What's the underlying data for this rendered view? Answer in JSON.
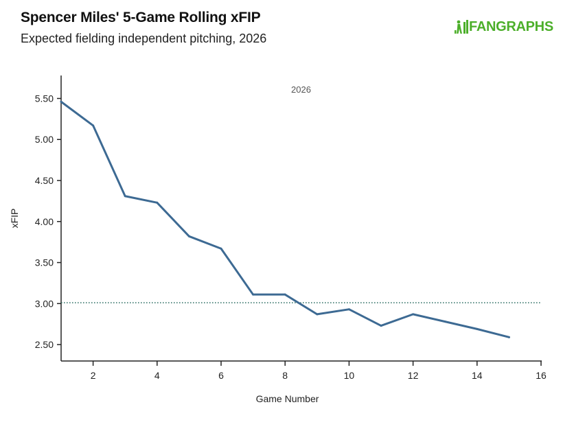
{
  "header": {
    "title": "Spencer Miles' 5-Game Rolling xFIP",
    "subtitle": "Expected fielding independent pitching, 2026",
    "logo_text": "FANGRAPHS",
    "logo_color": "#4caf2a"
  },
  "chart_data": {
    "type": "line",
    "xlabel": "Game Number",
    "ylabel": "xFIP",
    "xlim": [
      1,
      16
    ],
    "ylim": [
      2.3,
      5.78
    ],
    "x_ticks": [
      2,
      4,
      6,
      8,
      10,
      12,
      14,
      16
    ],
    "y_ticks": [
      2.5,
      3.0,
      3.5,
      4.0,
      4.5,
      5.0,
      5.5
    ],
    "y_tick_labels": [
      "2.50",
      "3.00",
      "3.50",
      "4.00",
      "4.50",
      "5.00",
      "5.50"
    ],
    "grid": false,
    "series": [
      {
        "label": "2026",
        "color": "#3d6a93",
        "x": [
          1,
          2,
          3,
          4,
          5,
          6,
          7,
          8,
          9,
          10,
          11,
          12,
          13,
          14,
          15
        ],
        "values": [
          5.46,
          5.17,
          4.31,
          4.23,
          3.82,
          3.67,
          3.11,
          3.11,
          2.87,
          2.93,
          2.73,
          2.87,
          2.78,
          2.69,
          2.59
        ]
      }
    ],
    "reference_line": {
      "value": 3.01,
      "style": "dotted",
      "color": "#2e6f64"
    }
  }
}
